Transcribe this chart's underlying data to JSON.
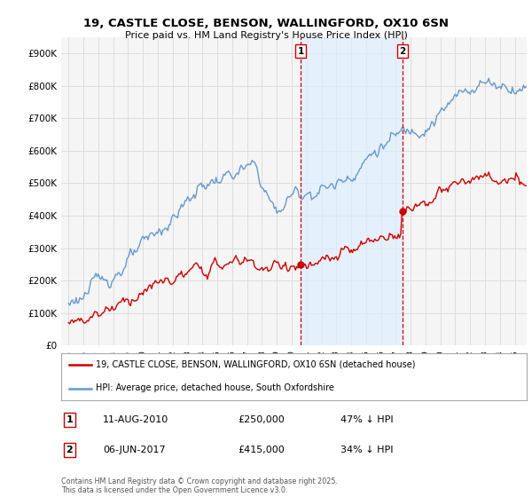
{
  "title_line1": "19, CASTLE CLOSE, BENSON, WALLINGFORD, OX10 6SN",
  "title_line2": "Price paid vs. HM Land Registry's House Price Index (HPI)",
  "background_color": "#ffffff",
  "plot_bg_color": "#f5f5f5",
  "red_line_label": "19, CASTLE CLOSE, BENSON, WALLINGFORD, OX10 6SN (detached house)",
  "blue_line_label": "HPI: Average price, detached house, South Oxfordshire",
  "annotation1_num": "1",
  "annotation1_date": "11-AUG-2010",
  "annotation1_price": "£250,000",
  "annotation1_hpi": "47% ↓ HPI",
  "annotation2_num": "2",
  "annotation2_date": "06-JUN-2017",
  "annotation2_price": "£415,000",
  "annotation2_hpi": "34% ↓ HPI",
  "footnote": "Contains HM Land Registry data © Crown copyright and database right 2025.\nThis data is licensed under the Open Government Licence v3.0.",
  "marker1_x": 2010.62,
  "marker1_y_red": 250000,
  "marker2_x": 2017.43,
  "marker2_y_red": 415000,
  "ylim_min": 0,
  "ylim_max": 950000,
  "xlim_min": 1994.5,
  "xlim_max": 2025.8,
  "red_color": "#cc0000",
  "blue_color": "#6699cc",
  "blue_fill_color": "#ddeeff",
  "vline_color": "#cc0000",
  "grid_color": "#dddddd"
}
